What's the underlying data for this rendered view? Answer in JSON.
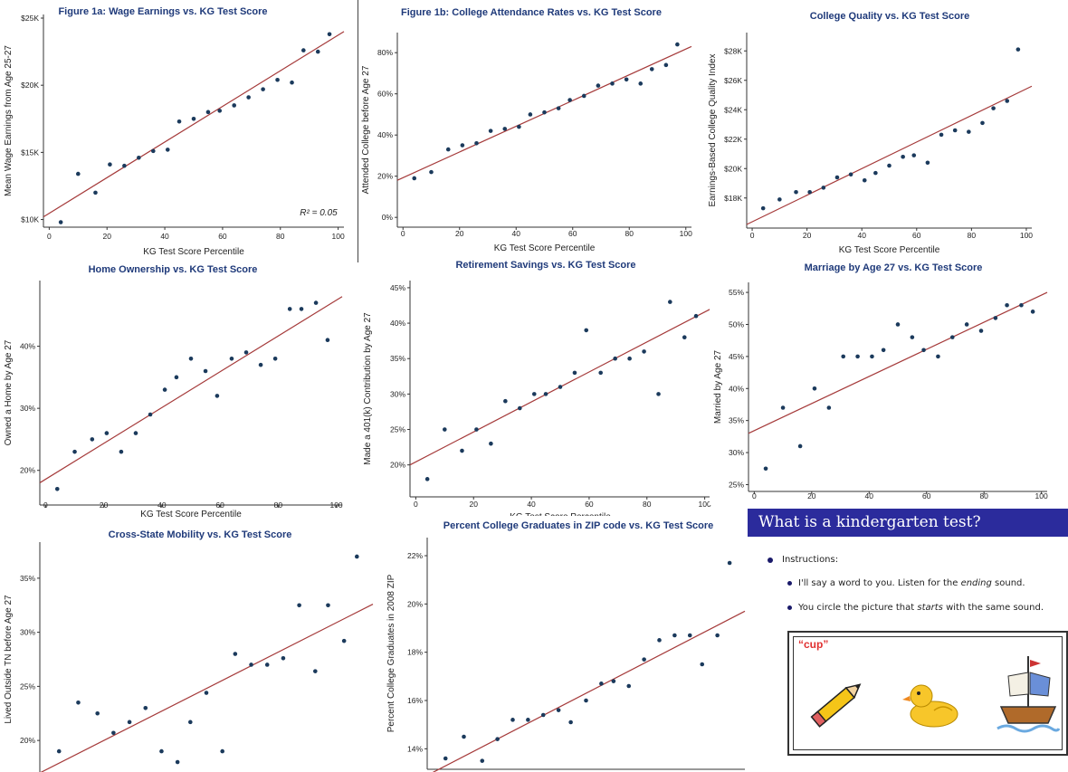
{
  "chart_data": [
    {
      "type": "scatter",
      "title": "Figure 1a: Wage Earnings vs. KG Test Score",
      "xlabel": "KG Test Score Percentile",
      "ylabel": "Mean Wage Earnings from Age 25-27",
      "xlim": [
        -2,
        102
      ],
      "ylim": [
        9700,
        25000
      ],
      "xticks": [
        0,
        20,
        40,
        60,
        80,
        100
      ],
      "xtick_labels": [
        "0",
        "20",
        "40",
        "60",
        "80",
        "100"
      ],
      "yticks": [
        10000,
        15000,
        20000,
        25000
      ],
      "ytick_labels": [
        "$10K",
        "$15K",
        "$20K",
        "$25K"
      ],
      "x": [
        4,
        10,
        16,
        21,
        26,
        31,
        36,
        41,
        45,
        50,
        55,
        59,
        64,
        69,
        74,
        79,
        84,
        88,
        93,
        97
      ],
      "y": [
        9800,
        13400,
        12000,
        14100,
        14000,
        14600,
        15100,
        15200,
        17300,
        17500,
        18000,
        18100,
        18500,
        19100,
        19700,
        20400,
        20200,
        22600,
        22500,
        23800
      ],
      "fit": [
        [
          -2,
          10200
        ],
        [
          102,
          24000
        ]
      ],
      "annotation": "R² = 0.05"
    },
    {
      "type": "scatter",
      "title": "Figure 1b: College Attendance Rates vs. KG Test Score",
      "xlabel": "KG Test Score Percentile",
      "ylabel": "Attended College before Age 27",
      "xlim": [
        -2,
        102
      ],
      "ylim": [
        -3,
        88
      ],
      "xticks": [
        0,
        20,
        40,
        60,
        80,
        100
      ],
      "xtick_labels": [
        "0",
        "20",
        "40",
        "60",
        "80",
        "100"
      ],
      "yticks": [
        0,
        20,
        40,
        60,
        80
      ],
      "ytick_labels": [
        "0%",
        "20%",
        "40%",
        "60%",
        "80%"
      ],
      "x": [
        4,
        10,
        16,
        21,
        26,
        31,
        36,
        41,
        45,
        50,
        55,
        59,
        64,
        69,
        74,
        79,
        84,
        88,
        93,
        97
      ],
      "y": [
        19,
        22,
        33,
        35,
        36,
        42,
        43,
        44,
        50,
        51,
        53,
        57,
        59,
        64,
        65,
        67,
        65,
        72,
        74,
        84
      ],
      "fit": [
        [
          -2,
          18
        ],
        [
          102,
          83
        ]
      ]
    },
    {
      "type": "scatter",
      "title": "College Quality vs. KG Test Score",
      "xlabel": "KG Test Score Percentile",
      "ylabel": "Earnings-Based College Quality Index",
      "xlim": [
        -2,
        102
      ],
      "ylim": [
        16200,
        29000
      ],
      "xticks": [
        0,
        20,
        40,
        60,
        80,
        100
      ],
      "xtick_labels": [
        "0",
        "20",
        "40",
        "60",
        "80",
        "100"
      ],
      "yticks": [
        18000,
        20000,
        22000,
        24000,
        26000,
        28000
      ],
      "ytick_labels": [
        "$18K",
        "$20K",
        "$22K",
        "$24K",
        "$26K",
        "$28K"
      ],
      "x": [
        4,
        10,
        16,
        21,
        26,
        31,
        36,
        41,
        45,
        50,
        55,
        59,
        64,
        69,
        74,
        79,
        84,
        88,
        93,
        97
      ],
      "y": [
        17300,
        17900,
        18400,
        18400,
        18700,
        19400,
        19600,
        19200,
        19700,
        20200,
        20800,
        20900,
        20400,
        22300,
        22600,
        22500,
        23100,
        24100,
        24600,
        28100
      ],
      "fit": [
        [
          -2,
          16200
        ],
        [
          102,
          25600
        ]
      ]
    },
    {
      "type": "scatter",
      "title": "Home Ownership vs. KG Test Score",
      "xlabel": "KG Test Score Percentile",
      "ylabel": "Owned a Home by Age 27",
      "xlim": [
        -2,
        102
      ],
      "ylim": [
        15,
        50
      ],
      "xticks": [
        0,
        20,
        40,
        60,
        80,
        100
      ],
      "xtick_labels": [
        "0",
        "20",
        "40",
        "60",
        "80",
        "100"
      ],
      "yticks": [
        20,
        30,
        40
      ],
      "ytick_labels": [
        "20%",
        "30%",
        "40%"
      ],
      "x": [
        4,
        10,
        16,
        21,
        26,
        31,
        36,
        41,
        45,
        50,
        55,
        59,
        64,
        69,
        74,
        79,
        84,
        88,
        93,
        97
      ],
      "y": [
        17,
        23,
        25,
        26,
        23,
        26,
        29,
        33,
        35,
        38,
        36,
        32,
        38,
        39,
        37,
        38,
        46,
        46,
        47,
        41
      ],
      "fit": [
        [
          -2,
          18
        ],
        [
          102,
          48
        ]
      ]
    },
    {
      "type": "scatter",
      "title": "Retirement Savings vs. KG Test Score",
      "xlabel": "KG Test Score Percentile",
      "ylabel": "Made a 401(k) Contribution by Age 27",
      "xlim": [
        -2,
        102
      ],
      "ylim": [
        16,
        45.5
      ],
      "xticks": [
        0,
        20,
        40,
        60,
        80,
        100
      ],
      "xtick_labels": [
        "0",
        "20",
        "40",
        "60",
        "80",
        "100"
      ],
      "yticks": [
        20,
        25,
        30,
        35,
        40,
        45
      ],
      "ytick_labels": [
        "20%",
        "25%",
        "30%",
        "35%",
        "40%",
        "45%"
      ],
      "x": [
        4,
        10,
        16,
        21,
        26,
        31,
        36,
        41,
        45,
        50,
        55,
        59,
        64,
        69,
        74,
        79,
        84,
        88,
        93,
        97
      ],
      "y": [
        18,
        25,
        22,
        25,
        23,
        29,
        28,
        30,
        30,
        31,
        33,
        39,
        33,
        35,
        35,
        36,
        30,
        43,
        38,
        41
      ],
      "fit": [
        [
          -2,
          20
        ],
        [
          102,
          42
        ]
      ]
    },
    {
      "type": "scatter",
      "title": "Marriage by Age 27 vs. KG Test Score",
      "xlabel": "",
      "ylabel": "Married by Age 27",
      "xlim": [
        -2,
        102
      ],
      "ylim": [
        24.5,
        56
      ],
      "xticks": [
        0,
        20,
        40,
        60,
        80,
        100
      ],
      "xtick_labels": [
        "0",
        "20",
        "40",
        "60",
        "80",
        "100"
      ],
      "yticks": [
        25,
        30,
        35,
        40,
        45,
        50,
        55
      ],
      "ytick_labels": [
        "25%",
        "30%",
        "35%",
        "40%",
        "45%",
        "50%",
        "55%"
      ],
      "x": [
        4,
        10,
        16,
        21,
        26,
        31,
        36,
        41,
        45,
        50,
        55,
        59,
        64,
        69,
        74,
        79,
        84,
        88,
        93,
        97
      ],
      "y": [
        27.5,
        37,
        31,
        40,
        37,
        45,
        45,
        45,
        46,
        50,
        48,
        46,
        45,
        48,
        50,
        49,
        51,
        53,
        53,
        52
      ],
      "fit": [
        [
          -2,
          33
        ],
        [
          102,
          55
        ]
      ]
    },
    {
      "type": "scatter",
      "title": "Cross-State Mobility vs. KG Test Score",
      "xlabel": "",
      "ylabel": "Lived Outside TN before Age 27",
      "xlim": [
        -2,
        102
      ],
      "ylim": [
        17,
        38
      ],
      "xticks": [],
      "xtick_labels": [],
      "yticks": [
        20,
        25,
        30,
        35
      ],
      "ytick_labels": [
        "20%",
        "25%",
        "30%",
        "35%"
      ],
      "x": [
        4,
        10,
        16,
        21,
        26,
        31,
        36,
        41,
        45,
        50,
        55,
        59,
        64,
        69,
        74,
        79,
        84,
        88,
        93,
        97
      ],
      "y": [
        19,
        23.5,
        22.5,
        20.7,
        21.7,
        23,
        19,
        18,
        21.7,
        24.4,
        19,
        28,
        27,
        27,
        27.6,
        32.5,
        26.4,
        32.5,
        29.2,
        37
      ],
      "fit": [
        [
          -2,
          17
        ],
        [
          102,
          32.6
        ]
      ]
    },
    {
      "type": "scatter",
      "title": "Percent College Graduates in ZIP code vs. KG Test Score",
      "xlabel": "",
      "ylabel": "Percent College Graduates in 2008 ZIP",
      "xlim": [
        -2,
        102
      ],
      "ylim": [
        13.3,
        22.6
      ],
      "xticks": [],
      "xtick_labels": [],
      "yticks": [
        14,
        16,
        18,
        20,
        22
      ],
      "ytick_labels": [
        "14%",
        "16%",
        "18%",
        "20%",
        "22%"
      ],
      "x": [
        4,
        10,
        16,
        21,
        26,
        31,
        36,
        41,
        45,
        50,
        55,
        59,
        64,
        69,
        74,
        79,
        84,
        88,
        93,
        97
      ],
      "y": [
        13.6,
        14.5,
        13.5,
        14.4,
        15.2,
        15.2,
        15.4,
        15.6,
        15.1,
        16.0,
        16.7,
        16.8,
        16.6,
        17.7,
        18.5,
        18.7,
        18.7,
        17.5,
        18.7,
        21.7
      ],
      "fit": [
        [
          -2,
          12.9
        ],
        [
          102,
          19.7
        ]
      ]
    }
  ],
  "slide": {
    "title": "What is a kindergarten test?",
    "instructions_label": "Instructions:",
    "bullet1_pre": "I'll say a word to you.  Listen for the ",
    "bullet1_em": "ending",
    "bullet1_post": " sound.",
    "bullet2_pre": "You circle the picture that ",
    "bullet2_em": "starts",
    "bullet2_post": " with the same sound.",
    "cue_word": "“cup”",
    "pictures": [
      "pencil-icon",
      "duck-icon",
      "ship-icon"
    ]
  },
  "colors": {
    "dot": "#1b3a5c",
    "fit": "#a53a3a",
    "title": "#1f3a7a",
    "slide_bar": "#2b2b9c"
  }
}
